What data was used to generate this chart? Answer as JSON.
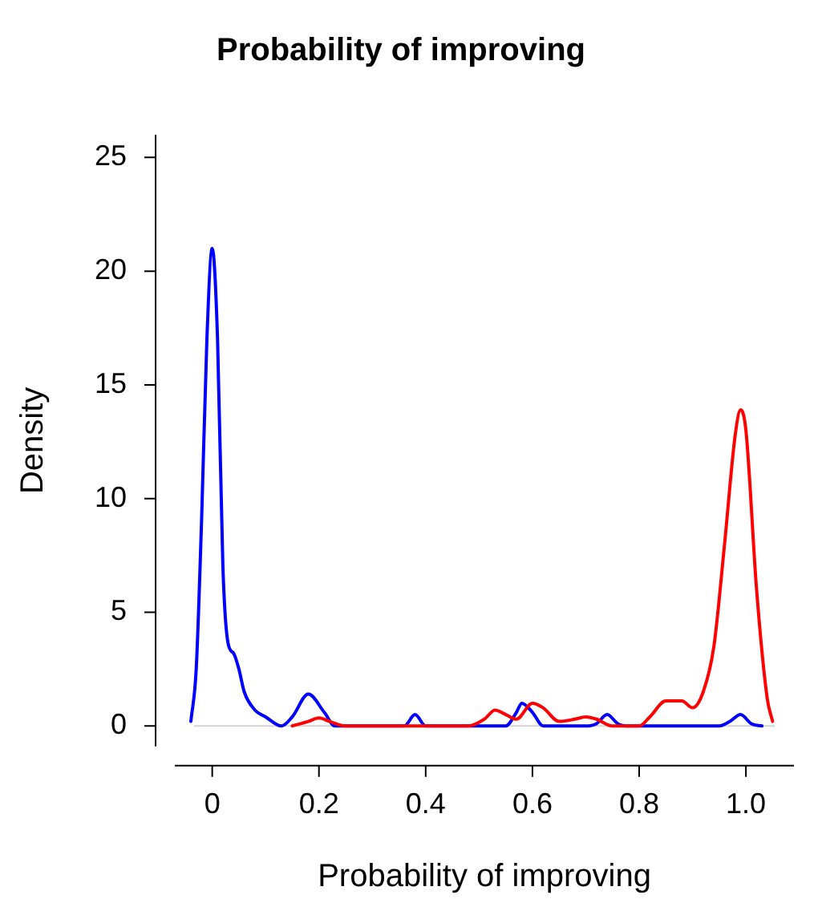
{
  "chart_data": {
    "type": "line",
    "title": "Probability of improving",
    "xlabel": "Probability of improving",
    "ylabel": "Density",
    "xlim": [
      -0.07,
      1.09
    ],
    "xticks": [
      {
        "value": 0,
        "label": "0"
      },
      0.2,
      0.4,
      0.6,
      0.8,
      {
        "value": 1,
        "label": "1.0"
      }
    ],
    "ylim": [
      -0.9,
      26
    ],
    "yticks": [
      0,
      5,
      10,
      15,
      20,
      25
    ],
    "grid": false,
    "legend": false,
    "marker": "none",
    "line_style": "solid",
    "ref_lines": [
      {
        "axis": "y",
        "value": 0,
        "color": "#d3d3d3"
      }
    ],
    "series": [
      {
        "color": "#ff0000",
        "x": [
          0.15,
          0.18,
          0.2,
          0.22,
          0.25,
          0.3,
          0.4,
          0.48,
          0.51,
          0.53,
          0.55,
          0.57,
          0.6,
          0.62,
          0.65,
          0.68,
          0.7,
          0.72,
          0.75,
          0.8,
          0.82,
          0.85,
          0.88,
          0.9,
          0.92,
          0.94,
          0.96,
          0.98,
          0.99,
          1.0,
          1.02,
          1.04,
          1.05
        ],
        "values": [
          0,
          0.2,
          0.35,
          0.2,
          0,
          0,
          0,
          0,
          0.3,
          0.7,
          0.5,
          0.3,
          1.0,
          0.8,
          0.2,
          0.3,
          0.4,
          0.3,
          0,
          0,
          0.4,
          1.1,
          1.1,
          0.8,
          1.5,
          3.5,
          8,
          12.8,
          13.9,
          13,
          6,
          1.2,
          0.2
        ]
      },
      {
        "color": "#0000ff",
        "x": [
          -0.04,
          -0.03,
          -0.02,
          -0.01,
          0,
          0.01,
          0.02,
          0.03,
          0.04,
          0.05,
          0.06,
          0.08,
          0.1,
          0.13,
          0.15,
          0.18,
          0.21,
          0.23,
          0.3,
          0.36,
          0.38,
          0.4,
          0.45,
          0.55,
          0.57,
          0.58,
          0.6,
          0.62,
          0.7,
          0.72,
          0.74,
          0.76,
          0.78,
          0.95,
          0.97,
          0.99,
          1.01,
          1.03
        ],
        "values": [
          0.2,
          2.5,
          9,
          17,
          21,
          17,
          7,
          3.6,
          3.2,
          2.5,
          1.5,
          0.7,
          0.4,
          0,
          0.4,
          1.4,
          0.6,
          0,
          0,
          0,
          0.5,
          0,
          0,
          0,
          0.6,
          1.0,
          0.6,
          0,
          0,
          0.1,
          0.5,
          0.1,
          0,
          0,
          0.2,
          0.5,
          0.1,
          0
        ]
      }
    ]
  }
}
